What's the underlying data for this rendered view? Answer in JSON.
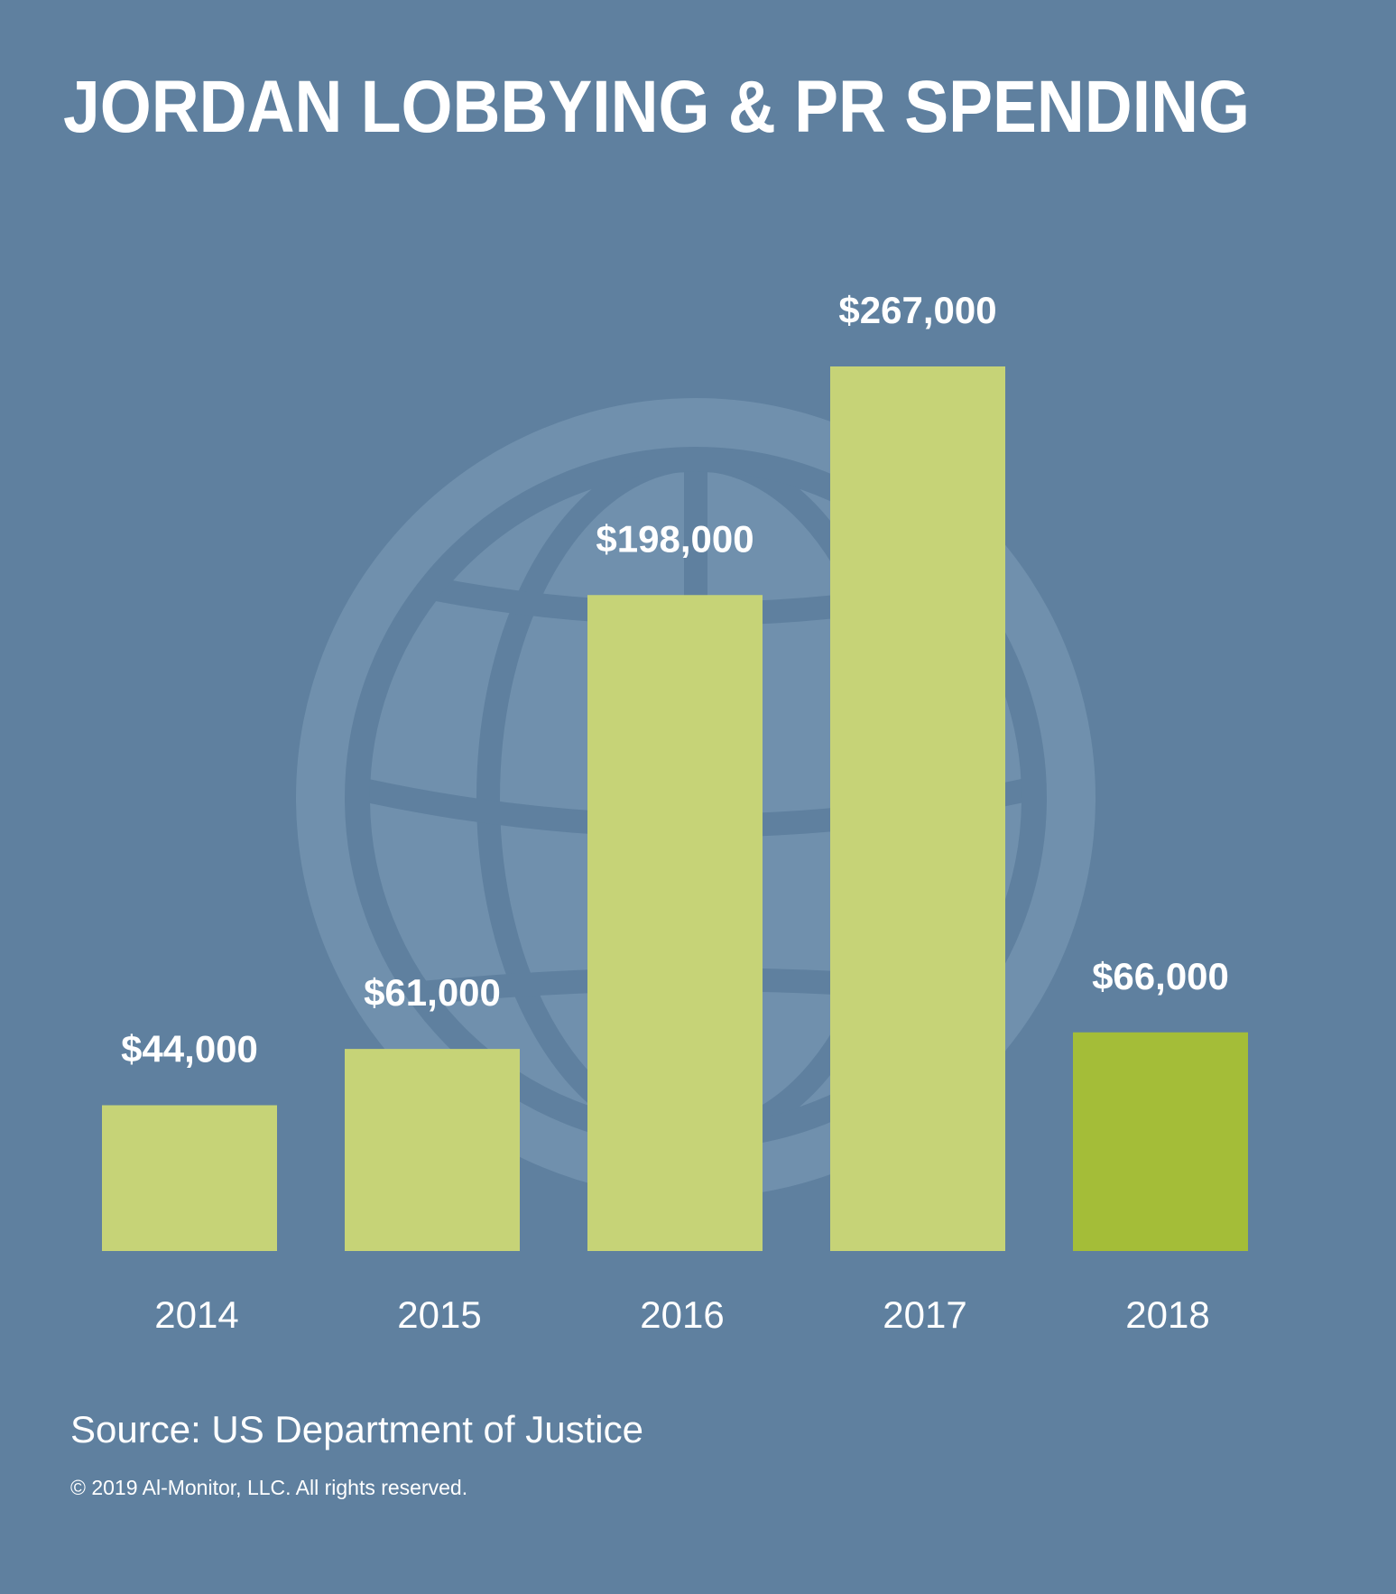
{
  "chart_data": {
    "type": "bar",
    "title": "JORDAN LOBBYING & PR SPENDING",
    "categories": [
      "2014",
      "2015",
      "2016",
      "2017",
      "2018"
    ],
    "values": [
      44000,
      61000,
      198000,
      267000,
      66000
    ],
    "value_labels": [
      "$44,000",
      "$61,000",
      "$198,000",
      "$267,000",
      "$66,000"
    ],
    "xlabel": "",
    "ylabel": "",
    "ylim": [
      0,
      267000
    ],
    "grid": false,
    "colors": {
      "background": "#5f809f",
      "bar": "#c6d377",
      "highlight_bar": "#a4bd38",
      "text": "#ffffff"
    },
    "highlight_index": 4
  },
  "footer": {
    "source": "Source: US Department of Justice",
    "copyright": "© 2019 Al-Monitor, LLC. All rights reserved."
  }
}
